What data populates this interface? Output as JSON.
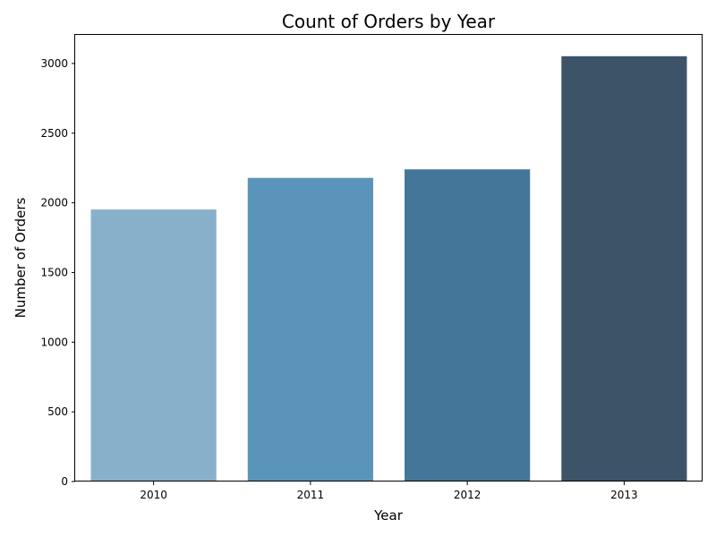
{
  "chart_data": {
    "type": "bar",
    "title": "Count of Orders by Year",
    "xlabel": "Year",
    "ylabel": "Number of Orders",
    "categories": [
      "2010",
      "2011",
      "2012",
      "2013"
    ],
    "values": [
      1952,
      2179,
      2240,
      3052
    ],
    "ylim": [
      0,
      3205
    ],
    "yticks": [
      0,
      500,
      1000,
      1500,
      2000,
      2500,
      3000
    ],
    "colors": [
      "#88b0cb",
      "#5b94bb",
      "#447699",
      "#3d5468"
    ],
    "grid": false,
    "legend": "none"
  }
}
